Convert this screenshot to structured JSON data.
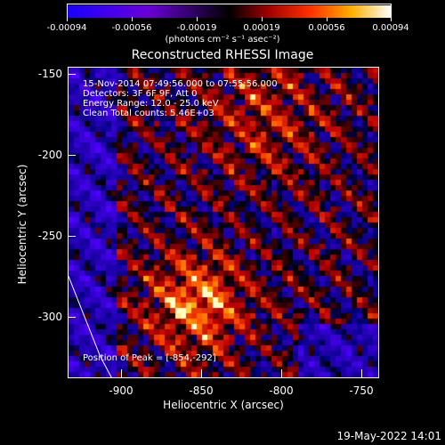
{
  "colorbar": {
    "ticks": [
      "-0.00094",
      "-0.00056",
      "-0.00019",
      "0.00019",
      "0.00056",
      "0.00094"
    ],
    "units": "(photons cm⁻² s⁻¹ asec⁻²)"
  },
  "chart_data": {
    "type": "heatmap",
    "title": "Reconstructed RHESSI Image",
    "xlabel": "Heliocentric X (arcsec)",
    "ylabel": "Heliocentric Y (arcsec)",
    "xlim": [
      -935,
      -740
    ],
    "ylim": [
      -338,
      -145
    ],
    "x_ticks": [
      "-900",
      "-850",
      "-800",
      "-750"
    ],
    "y_ticks": [
      "-150",
      "-200",
      "-250",
      "-300"
    ],
    "color_range": [
      -0.00094,
      0.00094
    ],
    "peak": {
      "x": -854,
      "y": -292
    },
    "limb_curve": [
      [
        -935,
        -275
      ],
      [
        -925,
        -300
      ],
      [
        -915,
        -325
      ],
      [
        -908,
        -338
      ]
    ]
  },
  "info": {
    "time": "15-Nov-2014 07:49:56.000 to 07:55:56.000",
    "detectors": "Detectors: 3F 6F 9F, Att 0",
    "energy": "Energy Range: 12.0 - 25.0 keV",
    "method": "Clean     Total counts: 5.46E+03",
    "peak_label": "Position of Peak = [-854,-292]"
  },
  "timestamp": "19-May-2022 14:01"
}
